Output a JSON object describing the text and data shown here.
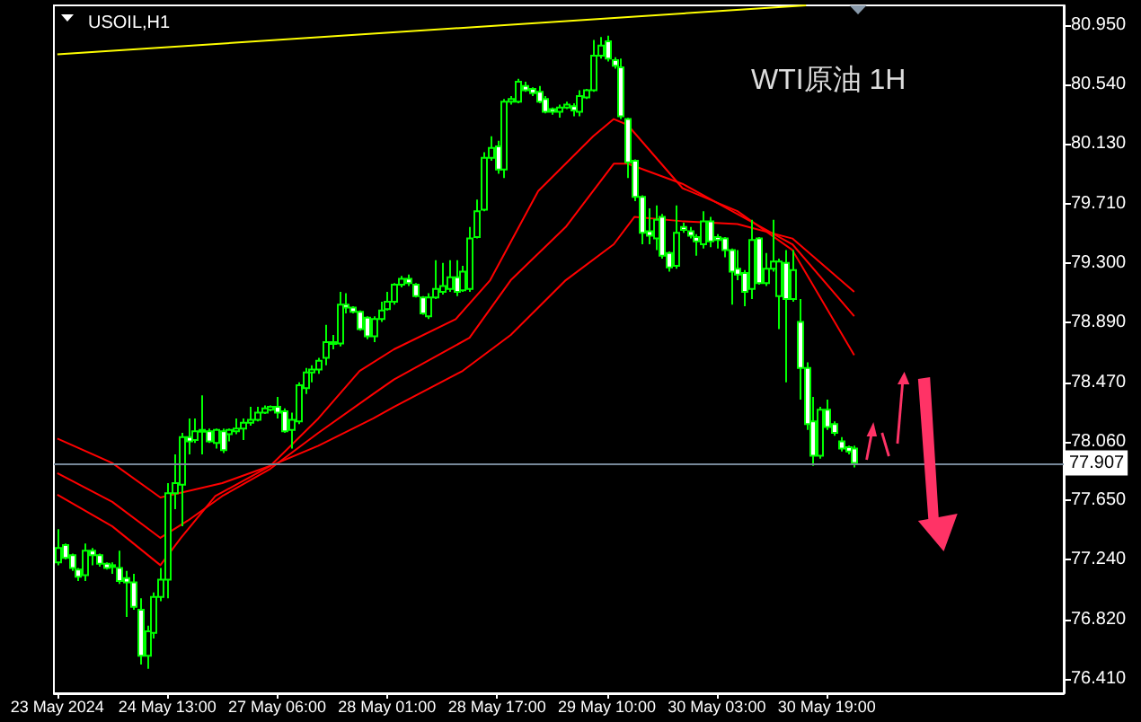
{
  "chart_data": {
    "type": "candlestick",
    "title": "USOIL,H1",
    "annotations": [
      "WTI原油 1H"
    ],
    "categories": [
      "23 May 2024",
      null,
      null,
      null,
      null,
      null,
      null,
      null,
      null,
      null,
      null,
      null,
      null,
      null,
      null,
      null,
      "24 May 13:00",
      null,
      null,
      null,
      null,
      null,
      null,
      null,
      null,
      null,
      null,
      null,
      null,
      null,
      null,
      null,
      "27 May 06:00",
      null,
      null,
      null,
      null,
      null,
      null,
      null,
      null,
      null,
      null,
      null,
      null,
      null,
      null,
      null,
      "28 May 01:00",
      null,
      null,
      null,
      null,
      null,
      null,
      null,
      null,
      null,
      null,
      null,
      null,
      null,
      null,
      null,
      "28 May 17:00",
      null,
      null,
      null,
      null,
      null,
      null,
      null,
      null,
      null,
      null,
      null,
      null,
      null,
      null,
      null,
      "29 May 10:00",
      null,
      null,
      null,
      null,
      null,
      null,
      null,
      null,
      null,
      null,
      null,
      null,
      null,
      null,
      null,
      "30 May 03:00",
      null,
      null,
      null,
      null,
      null,
      null,
      null,
      null,
      null,
      null,
      null,
      null,
      null,
      null,
      null,
      "30 May 19:00",
      null,
      null,
      null,
      null,
      null,
      null,
      null,
      null,
      null,
      null,
      null,
      null,
      null,
      null,
      null,
      null,
      null,
      null,
      null,
      null,
      null,
      null,
      null,
      null,
      null,
      null,
      null,
      null,
      null,
      null,
      null,
      null,
      null,
      null
    ],
    "ylim": [
      76.31,
      81.09
    ],
    "yticks": [
      {
        "value": 80.95,
        "label": "80.950"
      },
      {
        "value": 80.54,
        "label": "80.540"
      },
      {
        "value": 80.13,
        "label": "80.130"
      },
      {
        "value": 79.71,
        "label": "79.710"
      },
      {
        "value": 79.3,
        "label": "79.300"
      },
      {
        "value": 78.89,
        "label": "78.890"
      },
      {
        "value": 78.47,
        "label": "78.470"
      },
      {
        "value": 78.06,
        "label": "78.060"
      },
      {
        "value": 77.65,
        "label": "77.650"
      },
      {
        "value": 77.24,
        "label": "77.240"
      },
      {
        "value": 76.82,
        "label": "76.820"
      },
      {
        "value": 76.41,
        "label": "76.410"
      }
    ],
    "marker": "none",
    "line_style": "solid",
    "ref_lines": [
      {
        "axis": "y",
        "value": 77.907,
        "label": "77.907",
        "color": "#778899"
      }
    ],
    "series": [
      {
        "color": "#00ff00",
        "ohlc": [
          [
            77.22,
            77.45,
            77.2,
            77.32
          ],
          [
            77.34,
            77.35,
            77.24,
            77.25
          ],
          [
            77.27,
            77.28,
            77.16,
            77.18
          ],
          [
            77.17,
            77.18,
            77.09,
            77.12
          ],
          [
            77.13,
            77.35,
            77.09,
            77.3
          ],
          [
            77.3,
            77.32,
            77.2,
            77.27
          ],
          [
            77.27,
            77.28,
            77.19,
            77.21
          ],
          [
            77.21,
            77.22,
            77.17,
            77.18
          ],
          [
            77.19,
            77.22,
            77.14,
            77.2
          ],
          [
            77.18,
            77.3,
            77.07,
            77.09
          ],
          [
            77.11,
            77.16,
            76.84,
            77.08
          ],
          [
            77.08,
            77.14,
            76.89,
            76.91
          ],
          [
            76.89,
            76.97,
            76.51,
            76.57
          ],
          [
            76.57,
            76.78,
            76.48,
            76.74
          ],
          [
            76.73,
            77.01,
            76.69,
            76.98
          ],
          [
            76.98,
            77.18,
            76.95,
            77.1
          ],
          [
            77.1,
            77.77,
            76.97,
            77.7
          ],
          [
            77.7,
            77.97,
            77.59,
            77.77
          ],
          [
            77.76,
            78.12,
            77.47,
            78.09
          ],
          [
            78.09,
            78.22,
            77.97,
            78.06
          ],
          [
            78.07,
            78.22,
            78.05,
            78.13
          ],
          [
            78.13,
            78.38,
            77.97,
            78.14
          ],
          [
            78.13,
            78.15,
            78.05,
            78.06
          ],
          [
            78.05,
            78.15,
            78.01,
            78.14
          ],
          [
            78.13,
            78.15,
            77.98,
            78.0
          ],
          [
            78.11,
            78.15,
            78.06,
            78.14
          ],
          [
            78.13,
            78.22,
            78.11,
            78.15
          ],
          [
            78.15,
            78.22,
            78.07,
            78.19
          ],
          [
            78.19,
            78.3,
            78.17,
            78.21
          ],
          [
            78.21,
            78.3,
            78.2,
            78.26
          ],
          [
            78.26,
            78.31,
            78.25,
            78.29
          ],
          [
            78.28,
            78.31,
            78.27,
            78.3
          ],
          [
            78.3,
            78.37,
            78.22,
            78.26
          ],
          [
            78.27,
            78.29,
            78.12,
            78.13
          ],
          [
            78.14,
            78.26,
            78.01,
            78.21
          ],
          [
            78.2,
            78.47,
            78.18,
            78.45
          ],
          [
            78.43,
            78.57,
            78.39,
            78.54
          ],
          [
            78.54,
            78.59,
            78.47,
            78.56
          ],
          [
            78.56,
            78.64,
            78.53,
            78.62
          ],
          [
            78.64,
            78.87,
            78.59,
            78.75
          ],
          [
            78.74,
            78.8,
            78.7,
            78.75
          ],
          [
            78.74,
            79.1,
            78.72,
            79.01
          ],
          [
            79.01,
            79.09,
            78.95,
            78.99
          ],
          [
            78.99,
            79.0,
            78.95,
            78.96
          ],
          [
            78.96,
            78.97,
            78.83,
            78.84
          ],
          [
            78.92,
            78.93,
            78.77,
            78.79
          ],
          [
            78.79,
            78.93,
            78.75,
            78.91
          ],
          [
            78.91,
            79.03,
            78.89,
            78.97
          ],
          [
            78.98,
            79.1,
            78.97,
            79.03
          ],
          [
            79.03,
            79.16,
            79.01,
            79.15
          ],
          [
            79.15,
            79.21,
            79.13,
            79.19
          ],
          [
            79.19,
            79.22,
            79.14,
            79.16
          ],
          [
            79.15,
            79.16,
            79.06,
            79.07
          ],
          [
            79.06,
            79.07,
            78.94,
            78.95
          ],
          [
            78.93,
            79.09,
            78.91,
            79.06
          ],
          [
            79.06,
            79.32,
            79.05,
            79.12
          ],
          [
            79.1,
            79.3,
            79.08,
            79.14
          ],
          [
            79.12,
            79.32,
            79.1,
            79.2
          ],
          [
            79.2,
            79.32,
            79.07,
            79.1
          ],
          [
            79.11,
            79.28,
            79.1,
            79.24
          ],
          [
            79.12,
            79.55,
            79.1,
            79.47
          ],
          [
            79.48,
            79.74,
            79.47,
            79.66
          ],
          [
            79.67,
            80.07,
            79.66,
            80.03
          ],
          [
            80.03,
            80.18,
            80.01,
            80.1
          ],
          [
            80.11,
            80.15,
            79.92,
            79.95
          ],
          [
            79.95,
            80.44,
            79.89,
            80.42
          ],
          [
            80.42,
            80.46,
            80.4,
            80.44
          ],
          [
            80.42,
            80.58,
            80.41,
            80.56
          ],
          [
            80.53,
            80.56,
            80.49,
            80.5
          ],
          [
            80.51,
            80.52,
            80.46,
            80.48
          ],
          [
            80.49,
            80.53,
            80.41,
            80.42
          ],
          [
            80.44,
            80.46,
            80.34,
            80.35
          ],
          [
            80.37,
            80.38,
            80.33,
            80.35
          ],
          [
            80.35,
            80.4,
            80.31,
            80.38
          ],
          [
            80.38,
            80.42,
            80.37,
            80.4
          ],
          [
            80.39,
            80.41,
            80.32,
            80.36
          ],
          [
            80.35,
            80.5,
            80.32,
            80.46
          ],
          [
            80.45,
            80.51,
            80.44,
            80.5
          ],
          [
            80.5,
            80.85,
            80.49,
            80.74
          ],
          [
            80.74,
            80.87,
            80.72,
            80.81
          ],
          [
            80.84,
            80.88,
            80.7,
            80.72
          ],
          [
            80.71,
            80.73,
            80.65,
            80.67
          ],
          [
            80.66,
            80.72,
            80.3,
            80.32
          ],
          [
            80.3,
            80.31,
            79.89,
            80.0
          ],
          [
            80.01,
            80.02,
            79.73,
            79.76
          ],
          [
            79.76,
            79.77,
            79.43,
            79.51
          ],
          [
            79.52,
            79.68,
            79.43,
            79.49
          ],
          [
            79.47,
            79.7,
            79.39,
            79.6
          ],
          [
            79.62,
            79.64,
            79.33,
            79.35
          ],
          [
            79.37,
            79.38,
            79.24,
            79.27
          ],
          [
            79.28,
            79.7,
            79.26,
            79.51
          ],
          [
            79.55,
            79.58,
            79.51,
            79.53
          ],
          [
            79.52,
            79.55,
            79.47,
            79.49
          ],
          [
            79.48,
            79.5,
            79.35,
            79.45
          ],
          [
            79.43,
            79.66,
            79.4,
            79.59
          ],
          [
            79.59,
            79.62,
            79.41,
            79.45
          ],
          [
            79.48,
            79.5,
            79.4,
            79.46
          ],
          [
            79.47,
            79.48,
            79.34,
            79.39
          ],
          [
            79.39,
            79.4,
            79.01,
            79.24
          ],
          [
            79.26,
            79.39,
            79.18,
            79.22
          ],
          [
            79.23,
            79.25,
            79.0,
            79.1
          ],
          [
            79.12,
            79.6,
            79.05,
            79.46
          ],
          [
            79.47,
            79.48,
            79.15,
            79.16
          ],
          [
            79.16,
            79.37,
            79.14,
            79.26
          ],
          [
            79.26,
            79.6,
            79.24,
            79.31
          ],
          [
            79.07,
            79.33,
            78.84,
            79.31
          ],
          [
            79.3,
            79.39,
            78.47,
            79.05
          ],
          [
            79.05,
            79.39,
            79.03,
            79.25
          ],
          [
            78.89,
            79.05,
            78.35,
            78.57
          ],
          [
            78.57,
            78.61,
            78.14,
            78.18
          ],
          [
            78.2,
            78.37,
            77.89,
            77.96
          ],
          [
            77.96,
            78.3,
            77.94,
            78.28
          ],
          [
            78.28,
            78.35,
            78.14,
            78.16
          ],
          [
            78.18,
            78.2,
            78.1,
            78.12
          ],
          [
            78.06,
            78.09,
            77.99,
            78.01
          ],
          [
            78.02,
            78.03,
            77.97,
            77.99
          ],
          [
            78.01,
            78.03,
            77.88,
            77.91
          ],
          null,
          null,
          null,
          null,
          null,
          null,
          null,
          null,
          null,
          null,
          null,
          null,
          null,
          null,
          null,
          null,
          null,
          null,
          null,
          null,
          null,
          null,
          null,
          null,
          null,
          null,
          null,
          null,
          null,
          null
        ]
      },
      {
        "type": "line",
        "color": "#ff0000",
        "values": [
          78.08,
          null,
          null,
          null,
          null,
          null,
          null,
          null,
          77.91,
          null,
          null,
          null,
          null,
          null,
          null,
          77.67,
          null,
          null,
          null,
          null,
          null,
          null,
          null,
          null,
          77.77,
          null,
          null,
          null,
          null,
          null,
          null,
          77.89,
          null,
          null,
          null,
          null,
          null,
          null,
          78.03,
          null,
          null,
          null,
          null,
          null,
          null,
          null,
          78.22,
          null,
          null,
          78.3,
          null,
          null,
          null,
          null,
          null,
          null,
          null,
          null,
          null,
          78.55,
          null,
          null,
          null,
          null,
          null,
          null,
          78.8,
          null,
          null,
          null,
          null,
          null,
          null,
          null,
          79.18,
          null,
          null,
          null,
          null,
          null,
          null,
          79.43,
          null,
          null,
          79.62,
          null,
          null,
          null,
          null,
          null,
          null,
          79.59,
          null,
          null,
          null,
          null,
          null,
          null,
          null,
          79.57,
          null,
          null,
          null,
          null,
          null,
          null,
          null,
          79.47,
          null,
          null,
          null,
          null,
          null,
          null,
          null,
          null,
          79.1,
          null,
          null,
          null,
          null,
          null,
          null,
          null,
          null,
          null,
          null,
          null,
          null,
          null,
          null,
          null,
          null,
          null,
          null,
          null,
          null,
          null,
          null,
          null,
          null,
          null,
          null,
          null,
          null,
          null,
          null
        ]
      },
      {
        "type": "line",
        "color": "#ff0000",
        "values": [
          77.84,
          null,
          null,
          null,
          null,
          null,
          null,
          null,
          77.64,
          null,
          null,
          null,
          null,
          null,
          null,
          77.39,
          null,
          null,
          null,
          77.51,
          null,
          null,
          null,
          null,
          77.68,
          null,
          null,
          null,
          null,
          null,
          null,
          77.87,
          null,
          null,
          null,
          null,
          null,
          null,
          78.12,
          null,
          null,
          null,
          null,
          null,
          null,
          null,
          78.39,
          null,
          null,
          78.49,
          null,
          null,
          null,
          null,
          null,
          null,
          null,
          null,
          null,
          null,
          78.78,
          null,
          null,
          null,
          null,
          null,
          79.18,
          null,
          null,
          null,
          null,
          null,
          null,
          null,
          79.55,
          null,
          null,
          null,
          null,
          null,
          null,
          79.99,
          null,
          79.99,
          null,
          null,
          null,
          null,
          null,
          null,
          null,
          79.85,
          null,
          null,
          null,
          null,
          null,
          null,
          null,
          79.64,
          null,
          null,
          null,
          null,
          null,
          null,
          null,
          79.43,
          null,
          null,
          null,
          null,
          null,
          null,
          null,
          null,
          78.93,
          null,
          null,
          null,
          null,
          null,
          null,
          null,
          null,
          null,
          null,
          null,
          null,
          null,
          null,
          null,
          null,
          null,
          null,
          null,
          null,
          null,
          null,
          null,
          null,
          null,
          null,
          null,
          null,
          null,
          null
        ]
      },
      {
        "type": "line",
        "color": "#ff0000",
        "values": [
          77.69,
          null,
          null,
          null,
          null,
          null,
          null,
          null,
          77.47,
          null,
          null,
          null,
          null,
          null,
          null,
          77.2,
          null,
          null,
          77.39,
          null,
          null,
          null,
          null,
          77.68,
          null,
          null,
          null,
          null,
          null,
          null,
          null,
          77.89,
          null,
          null,
          null,
          null,
          null,
          null,
          78.22,
          null,
          null,
          null,
          null,
          null,
          78.55,
          null,
          null,
          null,
          null,
          78.7,
          null,
          null,
          null,
          null,
          null,
          null,
          null,
          null,
          78.91,
          null,
          null,
          null,
          null,
          79.18,
          null,
          null,
          null,
          null,
          null,
          null,
          79.8,
          null,
          null,
          null,
          null,
          null,
          null,
          null,
          80.18,
          null,
          null,
          80.3,
          null,
          80.26,
          null,
          null,
          null,
          null,
          null,
          null,
          null,
          79.82,
          null,
          null,
          null,
          null,
          null,
          null,
          null,
          79.66,
          null,
          null,
          null,
          null,
          null,
          null,
          null,
          79.39,
          null,
          null,
          null,
          null,
          null,
          null,
          null,
          null,
          78.66,
          null,
          null,
          null,
          null,
          null,
          null,
          null,
          null,
          null,
          null,
          null,
          null,
          null,
          null,
          null,
          null,
          null,
          null,
          null,
          null,
          null,
          null,
          null,
          null,
          null,
          null,
          null,
          null,
          null,
          null
        ]
      },
      {
        "type": "line",
        "color": "#ffff00",
        "values": [
          80.75,
          null,
          null,
          null,
          null,
          null,
          null,
          null,
          null,
          null,
          null,
          null,
          null,
          null,
          null,
          null,
          null,
          null,
          null,
          null,
          null,
          null,
          null,
          null,
          null,
          null,
          null,
          null,
          null,
          null,
          null,
          null,
          null,
          null,
          null,
          null,
          null,
          null,
          null,
          null,
          null,
          null,
          null,
          null,
          null,
          null,
          null,
          null,
          null,
          null,
          null,
          null,
          null,
          null,
          null,
          null,
          null,
          null,
          null,
          null,
          null,
          null,
          null,
          null,
          null,
          null,
          null,
          null,
          null,
          null,
          null,
          null,
          null,
          null,
          null,
          null,
          null,
          null,
          null,
          null,
          null,
          null,
          null,
          null,
          null,
          null,
          null,
          null,
          null,
          null,
          null,
          null,
          null,
          null,
          null,
          null,
          null,
          null,
          null,
          null,
          null,
          null,
          null,
          null,
          null,
          null,
          null,
          null,
          null,
          81.09,
          null,
          null,
          null,
          null,
          null,
          null,
          null,
          null,
          null,
          null,
          null,
          null,
          null,
          null,
          null,
          null,
          null,
          null,
          null,
          null,
          null,
          null,
          null,
          null,
          null,
          null,
          null,
          null,
          null,
          null,
          null,
          null,
          null,
          null,
          null,
          null,
          null
        ]
      }
    ]
  }
}
